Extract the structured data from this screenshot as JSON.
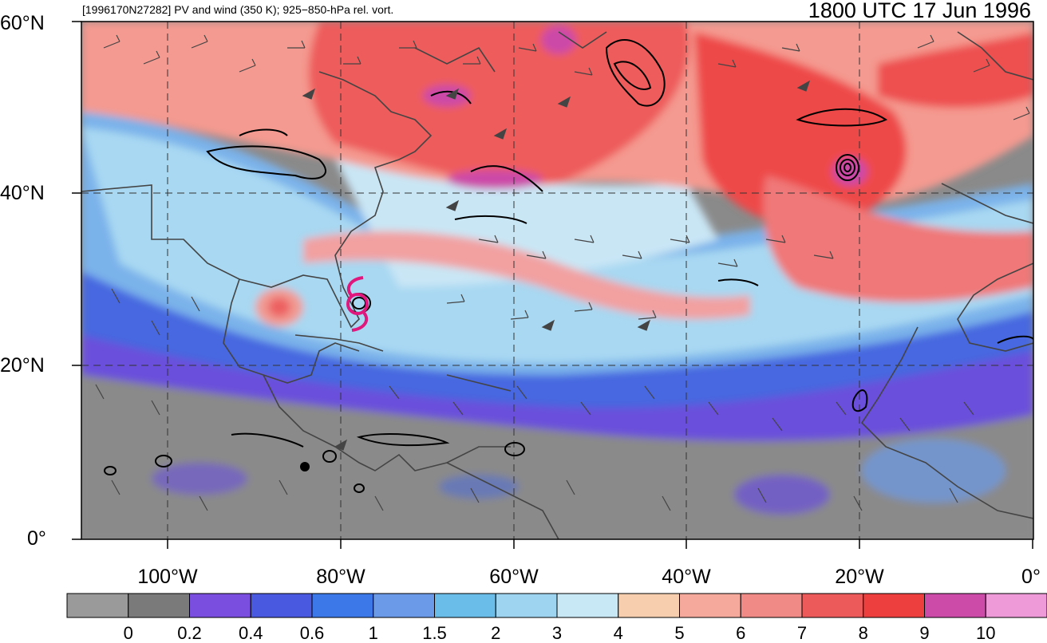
{
  "header": {
    "left_title": "[1996170N27282] PV and wind (350 K); 925−850-hPa rel. vort.",
    "right_title": "1800 UTC 17 Jun 1996"
  },
  "map": {
    "lat_labels": [
      "60°N",
      "40°N",
      "20°N",
      "0°"
    ],
    "lon_labels": [
      "100°W",
      "80°W",
      "60°W",
      "40°W",
      "20°W",
      "0°"
    ],
    "storm_symbol": "tropical-cyclone-symbol",
    "storm_color": "#e0177c"
  },
  "colorbar": {
    "colors": [
      "#9a9a9a",
      "#7a7a7a",
      "#7a4fe0",
      "#4a5ae0",
      "#3d78e8",
      "#6a9ae8",
      "#6abde8",
      "#9ed4f0",
      "#c8e8f6",
      "#f8cfae",
      "#f5a89c",
      "#f08a86",
      "#ec5a5a",
      "#ee3f3f",
      "#cc4aa8",
      "#ee9ad8"
    ],
    "labels": [
      "0",
      "0.2",
      "0.4",
      "0.6",
      "1",
      "1.5",
      "2",
      "3",
      "4",
      "5",
      "6",
      "7",
      "8",
      "9",
      "10"
    ]
  }
}
